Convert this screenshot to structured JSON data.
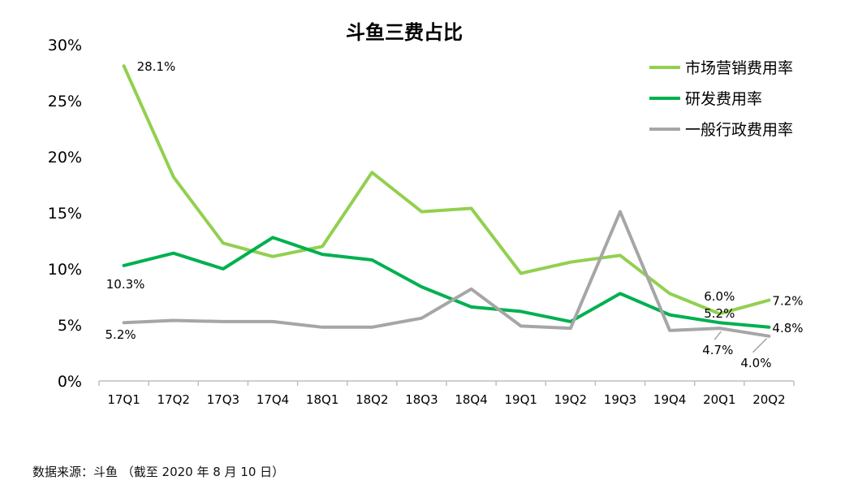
{
  "chart_data": {
    "type": "line",
    "title": "斗鱼三费占比",
    "categories": [
      "17Q1",
      "17Q2",
      "17Q3",
      "17Q4",
      "18Q1",
      "18Q2",
      "18Q3",
      "18Q4",
      "19Q1",
      "19Q2",
      "19Q3",
      "19Q4",
      "20Q1",
      "20Q2"
    ],
    "y_ticks": [
      "0%",
      "5%",
      "10%",
      "15%",
      "20%",
      "25%",
      "30%"
    ],
    "ylim": [
      0,
      30
    ],
    "grid": false,
    "legend_position": "top-right",
    "series": [
      {
        "name": "市场营销费用率",
        "color": "#92d050",
        "values": [
          28.1,
          18.2,
          12.3,
          11.1,
          12.0,
          18.6,
          15.1,
          15.4,
          9.6,
          10.6,
          11.2,
          7.8,
          6.0,
          7.2
        ]
      },
      {
        "name": "研发费用率",
        "color": "#00b050",
        "values": [
          10.3,
          11.4,
          10.0,
          12.8,
          11.3,
          10.8,
          8.4,
          6.6,
          6.2,
          5.3,
          7.8,
          5.9,
          5.2,
          4.8
        ]
      },
      {
        "name": "一般行政费用率",
        "color": "#a6a6a6",
        "values": [
          5.2,
          5.4,
          5.3,
          5.3,
          4.8,
          4.8,
          5.6,
          8.2,
          4.9,
          4.7,
          15.1,
          4.5,
          4.7,
          4.0
        ]
      }
    ],
    "data_labels": [
      {
        "series": 0,
        "index": 0,
        "text": "28.1%"
      },
      {
        "series": 0,
        "index": 12,
        "text": "6.0%"
      },
      {
        "series": 0,
        "index": 13,
        "text": "7.2%"
      },
      {
        "series": 1,
        "index": 0,
        "text": "10.3%"
      },
      {
        "series": 1,
        "index": 12,
        "text": "5.2%"
      },
      {
        "series": 1,
        "index": 13,
        "text": "4.8%"
      },
      {
        "series": 2,
        "index": 0,
        "text": "5.2%"
      },
      {
        "series": 2,
        "index": 12,
        "text": "4.7%"
      },
      {
        "series": 2,
        "index": 13,
        "text": "4.0%"
      }
    ]
  },
  "footer": {
    "source": "数据来源：斗鱼   （截至 2020 年 8 月 10 日）"
  }
}
